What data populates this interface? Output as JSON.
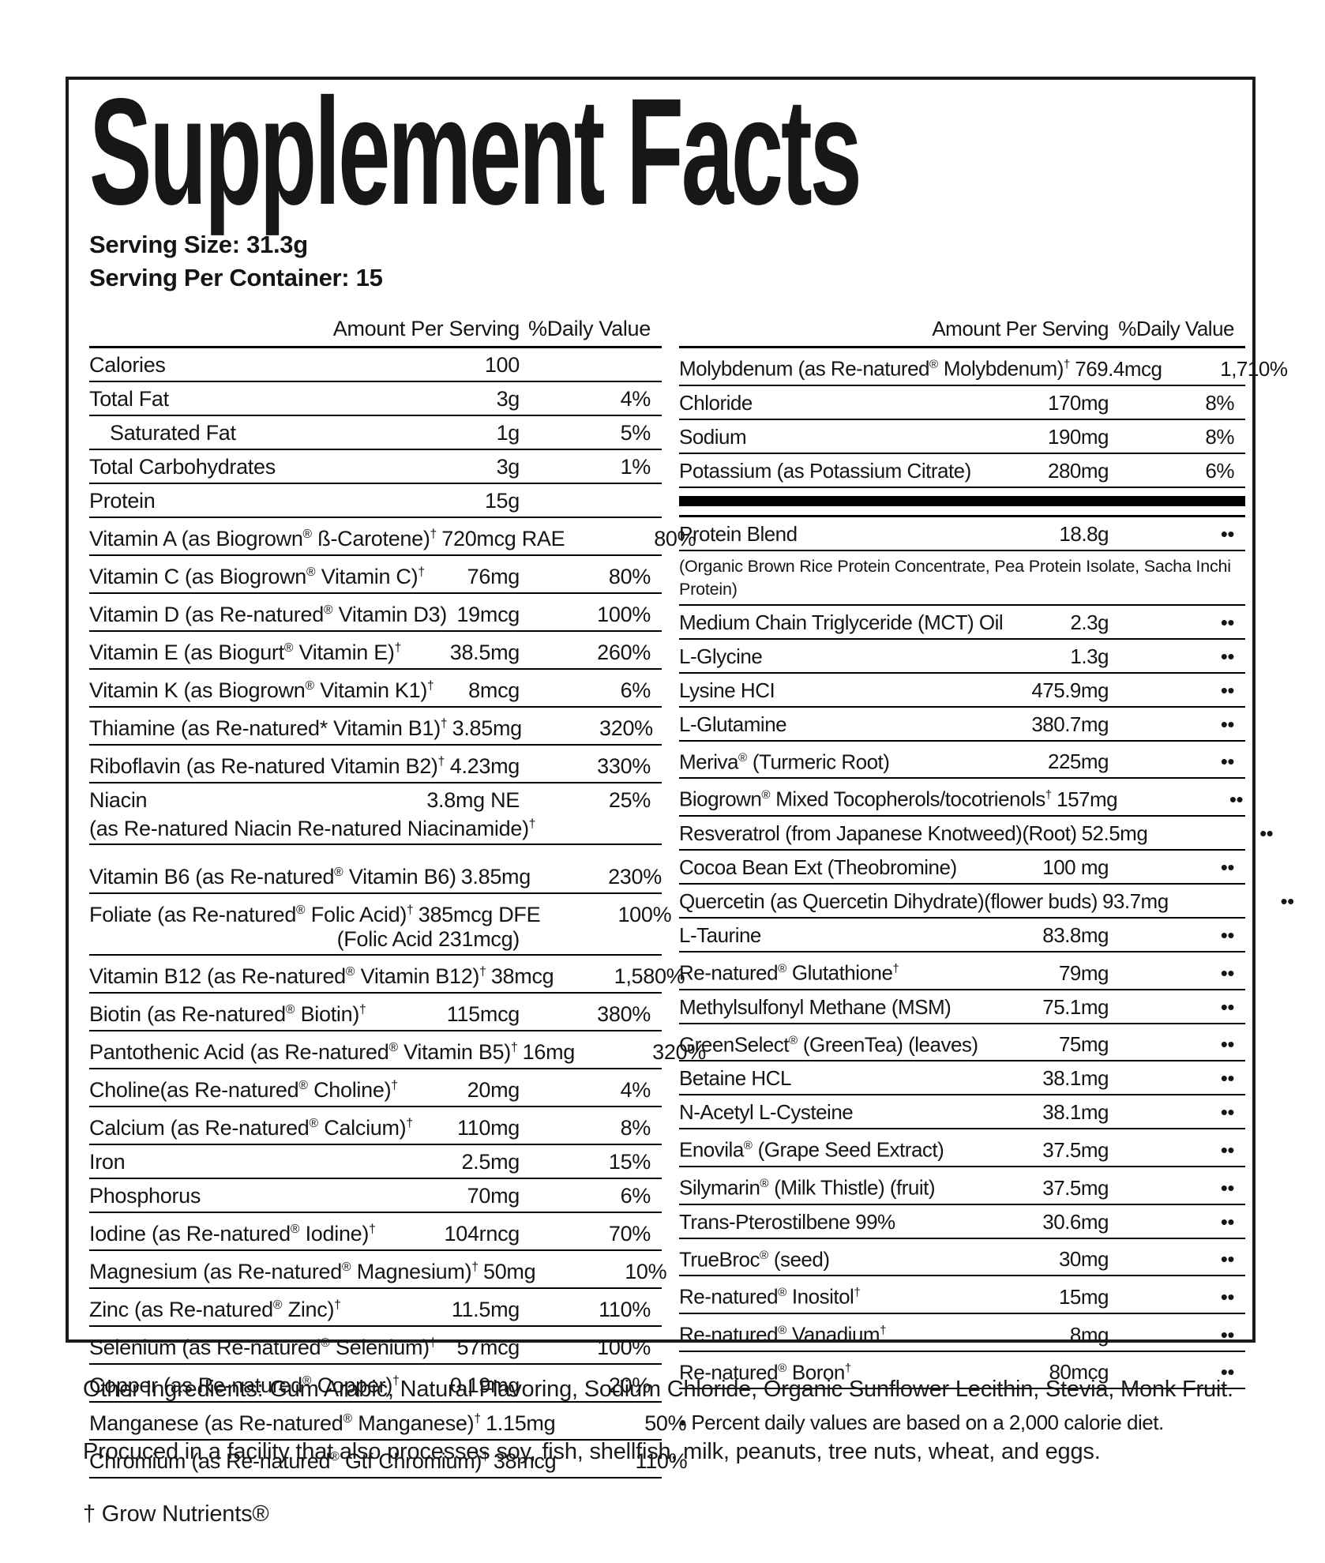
{
  "panel": {
    "title": "Supplement Facts",
    "serving_size": "Serving Size: 31.3g",
    "servings_per_container": "Serving Per Container: 15",
    "col_header": {
      "amount": "Amount Per Serving",
      "daily_value": "%Daily Value"
    },
    "left_rows": [
      {
        "name": "Calories",
        "amount": "100",
        "dv": ""
      },
      {
        "name": "Total Fat",
        "amount": "3g",
        "dv": "4%"
      },
      {
        "name": "Saturated Fat",
        "amount": "1g",
        "dv": "5%",
        "indent": true
      },
      {
        "name": "Total Carbohydrates",
        "amount": "3g",
        "dv": "1%"
      },
      {
        "name": "Protein",
        "amount": "15g",
        "dv": ""
      },
      {
        "name": "Vitamin A (as Biogrown® ß-Carotene)†",
        "amount": "720mcg RAE",
        "dv": "80%"
      },
      {
        "name": "Vitamin C (as Biogrown® Vitamin C)†",
        "amount": "76mg",
        "dv": "80%"
      },
      {
        "name": "Vitamin D (as Re-natured® Vitamin D3)",
        "amount": "19mcg",
        "dv": "100%"
      },
      {
        "name": "Vitamin E (as Biogurt® Vitamin E)†",
        "amount": "38.5mg",
        "dv": "260%"
      },
      {
        "name": "Vitamin K (as Biogrown® Vitamin K1)†",
        "amount": "8mcg",
        "dv": "6%"
      },
      {
        "name": "Thiamine (as Re-natured* Vitamin B1)†",
        "amount": "3.85mg",
        "dv": "320%"
      },
      {
        "name": "Riboflavin (as Re-natured Vitamin B2)†",
        "amount": "4.23mg",
        "dv": "330%"
      },
      {
        "name": "Niacin",
        "amount": "3.8mg  NE",
        "dv": "25%",
        "line2": "(as Re-natured Niacin Re-natured Niacinamide)†",
        "line2_align": "full"
      },
      {
        "name": "Vitamin B6 (as Re-natured® Vitamin B6)",
        "amount": "3.85mg",
        "dv": "230%",
        "gap_before": true
      },
      {
        "name": "Foliate (as Re-natured® Folic Acid)†",
        "amount": "385mcg DFE",
        "dv": "100%",
        "line2": "(Folic Acid 231mcg)",
        "line2_align": "amount"
      },
      {
        "name": "Vitamin B12 (as Re-natured® Vitamin B12)†",
        "amount": "38mcg",
        "dv": "1,580%"
      },
      {
        "name": "Biotin (as Re-natured® Biotin)†",
        "amount": "115mcg",
        "dv": "380%"
      },
      {
        "name": "Pantothenic  Acid (as Re-natured® Vitamin B5)†",
        "amount": "16mg",
        "dv": "320%"
      },
      {
        "name": "Choline(as Re-natured® Choline)†",
        "amount": "20mg",
        "dv": "4%"
      },
      {
        "name": "Calcium (as Re-natured® Calcium)†",
        "amount": "110mg",
        "dv": "8%"
      },
      {
        "name": "Iron",
        "amount": "2.5mg",
        "dv": "15%"
      },
      {
        "name": "Phosphorus",
        "amount": "70mg",
        "dv": "6%"
      },
      {
        "name": "Iodine (as Re-natured® Iodine)†",
        "amount": "104rncg",
        "dv": "70%"
      },
      {
        "name": "Magnesium (as Re-natured® Magnesium)†",
        "amount": "50mg",
        "dv": "10%"
      },
      {
        "name": "Zinc (as Re-natured® Zinc)†",
        "amount": "11.5mg",
        "dv": "110%"
      },
      {
        "name": "Selenium (as Re-natured® Selenium)†",
        "amount": "57mcg",
        "dv": "100%"
      },
      {
        "name": "Copper (as Re-natured® Copper)†",
        "amount": "0.19mg",
        "dv": "20%"
      },
      {
        "name": "Manganese (as Re-natured® Manganese)†",
        "amount": "1.15mg",
        "dv": "50%"
      },
      {
        "name": "Chromium (as Re-natured® Gtf Chromium)†",
        "amount": "38mcg",
        "dv": "110%"
      }
    ],
    "right_rows": [
      {
        "name": "Molybdenum (as Re-natured® Molybdenum)†",
        "amount": "769.4mcg",
        "dv": "1,710%"
      },
      {
        "name": "Chloride",
        "amount": "170mg",
        "dv": "8%"
      },
      {
        "name": "Sodium",
        "amount": "190mg",
        "dv": "8%"
      },
      {
        "name": "Potassium (as Potassium Citrate)",
        "amount": "280mg",
        "dv": "6%"
      },
      {
        "name": "Protein Blend",
        "amount": "18.8g",
        "dv": "••",
        "bar_before": true,
        "top_rule": true
      },
      {
        "subnote": true,
        "text": "(Organic Brown Rice Protein Concentrate, Pea Protein Isolate, Sacha Inchi Protein)"
      },
      {
        "name": "Medium Chain Triglyceride (MCT) Oil",
        "amount": "2.3g",
        "dv": "••"
      },
      {
        "name": "L-Glycine",
        "amount": "1.3g",
        "dv": "••"
      },
      {
        "name": "Lysine HCI",
        "amount": "475.9mg",
        "dv": "••"
      },
      {
        "name": "L-Glutamine",
        "amount": "380.7mg",
        "dv": "••"
      },
      {
        "name": "Meriva® (Turmeric Root)",
        "amount": "225mg",
        "dv": "••"
      },
      {
        "name": "Biogrown® Mixed Tocopherols/tocotrienols†",
        "amount": "157mg",
        "dv": "••"
      },
      {
        "name": "Resveratrol (from Japanese Knotweed)(Root)",
        "amount": "52.5mg",
        "dv": "••"
      },
      {
        "name": "Cocoa Bean Ext (Theobromine)",
        "amount": "100 mg",
        "dv": "••"
      },
      {
        "name": "Quercetin (as Quercetin Dihydrate)(flower buds)",
        "amount": "93.7mg",
        "dv": "••"
      },
      {
        "name": "L-Taurine",
        "amount": "83.8mg",
        "dv": "••"
      },
      {
        "name": "Re-natured® Glutathione†",
        "amount": "79mg",
        "dv": "••"
      },
      {
        "name": "Methylsulfonyl Methane (MSM)",
        "amount": "75.1mg",
        "dv": "••"
      },
      {
        "name": "GreenSelect® (GreenTea) (leaves)",
        "amount": "75mg",
        "dv": "••"
      },
      {
        "name": "Betaine HCL",
        "amount": "38.1mg",
        "dv": "••"
      },
      {
        "name": "N-Acetyl L-Cysteine",
        "amount": "38.1mg",
        "dv": "••"
      },
      {
        "name": "Enovila® (Grape Seed Extract)",
        "amount": "37.5mg",
        "dv": "••"
      },
      {
        "name": "Silymarin® (Milk Thistle) (fruit)",
        "amount": "37.5mg",
        "dv": "••"
      },
      {
        "name": "Trans-Pterostilbene 99%",
        "amount": "30.6mg",
        "dv": "••"
      },
      {
        "name": "TrueBroc® (seed)",
        "amount": "30mg",
        "dv": "••"
      },
      {
        "name": "Re-natured® Inositol†",
        "amount": "15mg",
        "dv": "••"
      },
      {
        "name": "Re-natured® Vanadium†",
        "amount": "8mg",
        "dv": "••"
      },
      {
        "name": "Re-natured® Boron†",
        "amount": "80mcg",
        "dv": "••"
      }
    ],
    "dv_footnote": "• Percent daily values are based on a 2,000 calorie diet."
  },
  "footer": {
    "other_ingredients": "Other Ingredients: Gum Arabic, Natural Flavoring, Sodium Chloride, Organic Sunflower Lecithin, Stevia, Monk Fruit.",
    "allergen_notice": "Procuced in a facility that also processes soy, fish, shellfish, milk, peanuts, tree nuts, wheat, and eggs.",
    "trademark_note": "† Grow Nutrients®"
  }
}
